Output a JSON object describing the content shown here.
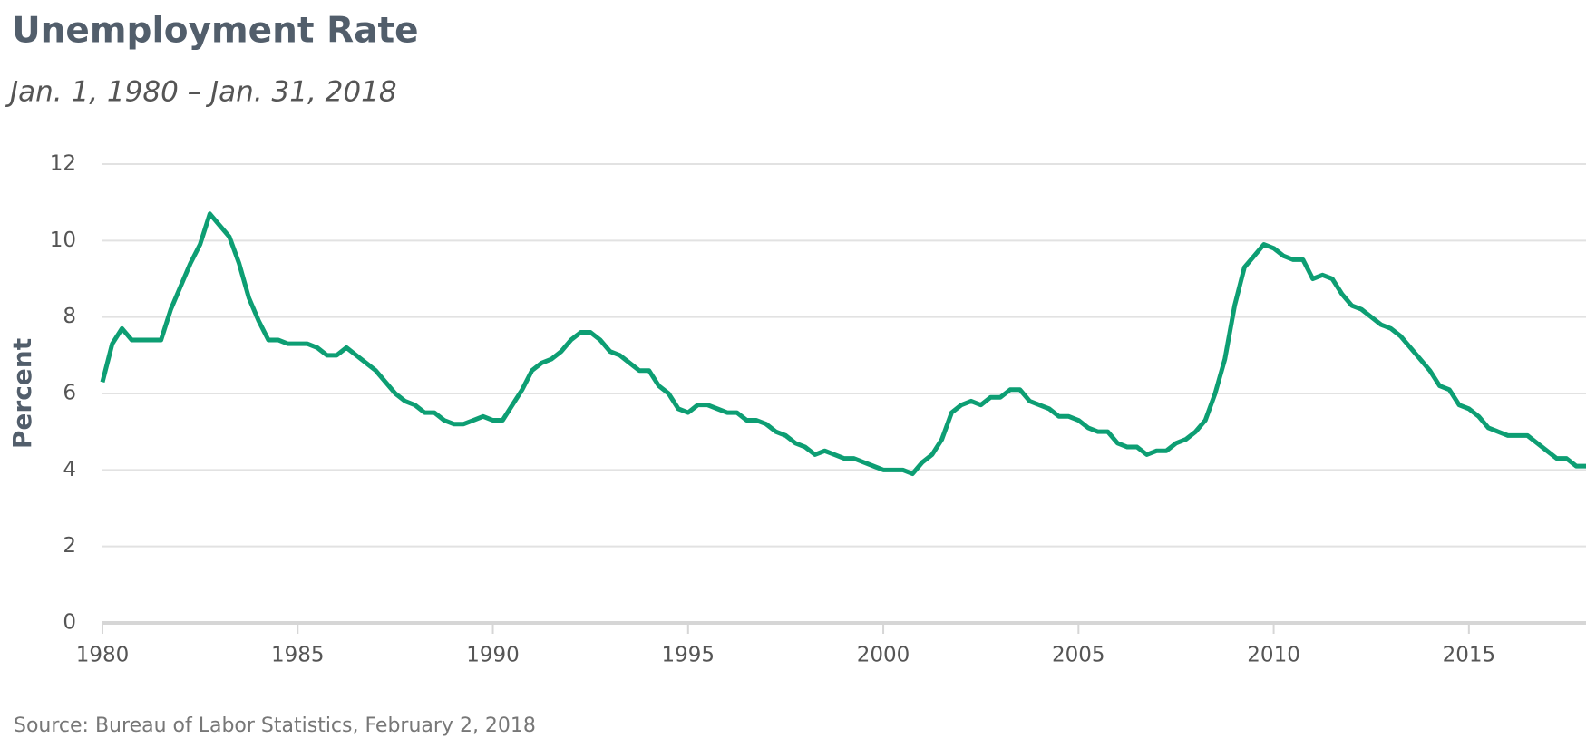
{
  "chart_data": {
    "type": "line",
    "title": "Unemployment Rate",
    "subtitle": "Jan. 1, 1980 – Jan. 31, 2018",
    "y_label": "Percent",
    "source": "Source: Bureau of Labor Statistics,  February 2, 2018",
    "x": [
      1980,
      1980.25,
      1980.5,
      1980.75,
      1981,
      1981.25,
      1981.5,
      1981.75,
      1982,
      1982.25,
      1982.5,
      1982.75,
      1983,
      1983.25,
      1983.5,
      1983.75,
      1984,
      1984.25,
      1984.5,
      1984.75,
      1985,
      1985.25,
      1985.5,
      1985.75,
      1986,
      1986.25,
      1986.5,
      1986.75,
      1987,
      1987.25,
      1987.5,
      1987.75,
      1988,
      1988.25,
      1988.5,
      1988.75,
      1989,
      1989.25,
      1989.5,
      1989.75,
      1990,
      1990.25,
      1990.5,
      1990.75,
      1991,
      1991.25,
      1991.5,
      1991.75,
      1992,
      1992.25,
      1992.5,
      1992.75,
      1993,
      1993.25,
      1993.5,
      1993.75,
      1994,
      1994.25,
      1994.5,
      1994.75,
      1995,
      1995.25,
      1995.5,
      1995.75,
      1996,
      1996.25,
      1996.5,
      1996.75,
      1997,
      1997.25,
      1997.5,
      1997.75,
      1998,
      1998.25,
      1998.5,
      1998.75,
      1999,
      1999.25,
      1999.5,
      1999.75,
      2000,
      2000.25,
      2000.5,
      2000.75,
      2001,
      2001.25,
      2001.5,
      2001.75,
      2002,
      2002.25,
      2002.5,
      2002.75,
      2003,
      2003.25,
      2003.5,
      2003.75,
      2004,
      2004.25,
      2004.5,
      2004.75,
      2005,
      2005.25,
      2005.5,
      2005.75,
      2006,
      2006.25,
      2006.5,
      2006.75,
      2007,
      2007.25,
      2007.5,
      2007.75,
      2008,
      2008.25,
      2008.5,
      2008.75,
      2009,
      2009.25,
      2009.5,
      2009.75,
      2010,
      2010.25,
      2010.5,
      2010.75,
      2011,
      2011.25,
      2011.5,
      2011.75,
      2012,
      2012.25,
      2012.5,
      2012.75,
      2013,
      2013.25,
      2013.5,
      2013.75,
      2014,
      2014.25,
      2014.5,
      2014.75,
      2015,
      2015.25,
      2015.5,
      2015.75,
      2016,
      2016.25,
      2016.5,
      2016.75,
      2017,
      2017.25,
      2017.5,
      2017.75,
      2018
    ],
    "series": [
      {
        "name": "Unemployment Rate",
        "color": "#0d9e73",
        "values": [
          6.3,
          7.3,
          7.7,
          7.4,
          7.4,
          7.4,
          7.4,
          8.2,
          8.8,
          9.4,
          9.9,
          10.7,
          10.4,
          10.1,
          9.4,
          8.5,
          7.9,
          7.4,
          7.4,
          7.3,
          7.3,
          7.3,
          7.2,
          7.0,
          7.0,
          7.2,
          7.0,
          6.8,
          6.6,
          6.3,
          6.0,
          5.8,
          5.7,
          5.5,
          5.5,
          5.3,
          5.2,
          5.2,
          5.3,
          5.4,
          5.3,
          5.3,
          5.7,
          6.1,
          6.6,
          6.8,
          6.9,
          7.1,
          7.4,
          7.6,
          7.6,
          7.4,
          7.1,
          7.0,
          6.8,
          6.6,
          6.6,
          6.2,
          6.0,
          5.6,
          5.5,
          5.7,
          5.7,
          5.6,
          5.5,
          5.5,
          5.3,
          5.3,
          5.2,
          5.0,
          4.9,
          4.7,
          4.6,
          4.4,
          4.5,
          4.4,
          4.3,
          4.3,
          4.2,
          4.1,
          4.0,
          4.0,
          4.0,
          3.9,
          4.2,
          4.4,
          4.8,
          5.5,
          5.7,
          5.8,
          5.7,
          5.9,
          5.9,
          6.1,
          6.1,
          5.8,
          5.7,
          5.6,
          5.4,
          5.4,
          5.3,
          5.1,
          5.0,
          5.0,
          4.7,
          4.6,
          4.6,
          4.4,
          4.5,
          4.5,
          4.7,
          4.8,
          5.0,
          5.3,
          6.0,
          6.9,
          8.3,
          9.3,
          9.6,
          9.9,
          9.8,
          9.6,
          9.5,
          9.5,
          9.0,
          9.1,
          9.0,
          8.6,
          8.3,
          8.2,
          8.0,
          7.8,
          7.7,
          7.5,
          7.2,
          6.9,
          6.6,
          6.2,
          6.1,
          5.7,
          5.6,
          5.4,
          5.1,
          5.0,
          4.9,
          4.9,
          4.9,
          4.7,
          4.5,
          4.3,
          4.3,
          4.1,
          4.1
        ]
      }
    ],
    "xlim": [
      1980,
      2018
    ],
    "xticks": [
      1980,
      1985,
      1990,
      1995,
      2000,
      2005,
      2010,
      2015
    ],
    "ylim": [
      0,
      12
    ],
    "yticks": [
      0,
      2,
      4,
      6,
      8,
      10,
      12
    ],
    "grid": true
  }
}
